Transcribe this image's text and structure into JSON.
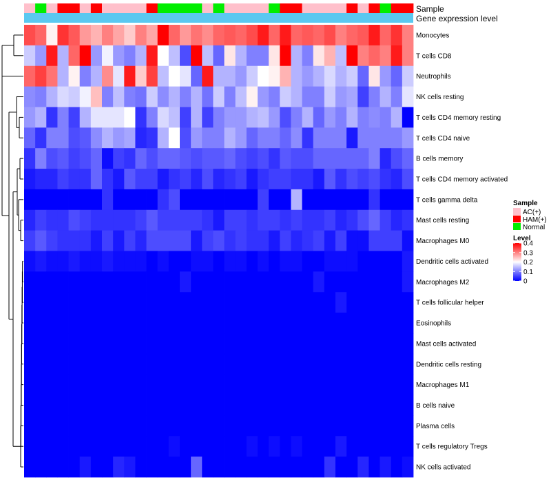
{
  "chart_data": {
    "type": "heatmap",
    "top_annotations": [
      "Sample",
      "Gene expression level"
    ],
    "sample_groups": {
      "AC(+)": "#ffc0cb",
      "HAM(+)": "#ff0000",
      "Normal": "#00ee00"
    },
    "gene_expression_color": "#5bc8f0",
    "samples": [
      "AC(+)",
      "Normal",
      "AC(+)",
      "HAM(+)",
      "HAM(+)",
      "AC(+)",
      "HAM(+)",
      "AC(+)",
      "AC(+)",
      "AC(+)",
      "AC(+)",
      "HAM(+)",
      "Normal",
      "Normal",
      "Normal",
      "Normal",
      "AC(+)",
      "Normal",
      "AC(+)",
      "AC(+)",
      "AC(+)",
      "AC(+)",
      "Normal",
      "HAM(+)",
      "HAM(+)",
      "AC(+)",
      "AC(+)",
      "AC(+)",
      "AC(+)",
      "HAM(+)",
      "AC(+)",
      "HAM(+)",
      "Normal",
      "HAM(+)",
      "HAM(+)"
    ],
    "rows": [
      "Monocytes",
      "T cells CD8",
      "Neutrophils",
      "NK cells resting",
      "T cells CD4 memory resting",
      "T cells CD4 naive",
      "B cells memory",
      "T cells CD4 memory activated",
      "T cells gamma delta",
      "Mast cells resting",
      "Macrophages M0",
      "Dendritic cells activated",
      "Macrophages M2",
      "T cells follicular helper",
      "Eosinophils",
      "Mast cells activated",
      "Dendritic cells resting",
      "Macrophages M1",
      "B cells naive",
      "Plasma cells",
      "T cells regulatory  Tregs",
      "NK cells activated"
    ],
    "values": [
      [
        0.34,
        0.32,
        0.21,
        0.36,
        0.33,
        0.28,
        0.26,
        0.3,
        0.27,
        0.24,
        0.3,
        0.27,
        0.4,
        0.32,
        0.28,
        0.31,
        0.29,
        0.32,
        0.33,
        0.32,
        0.34,
        0.38,
        0.32,
        0.38,
        0.32,
        0.33,
        0.32,
        0.34,
        0.3,
        0.32,
        0.33,
        0.38,
        0.32,
        0.36,
        0.3
      ],
      [
        0.16,
        0.12,
        0.38,
        0.14,
        0.32,
        0.4,
        0.12,
        0.19,
        0.12,
        0.1,
        0.14,
        0.38,
        0.2,
        0.15,
        0.06,
        0.4,
        0.15,
        0.08,
        0.22,
        0.14,
        0.1,
        0.1,
        0.22,
        0.4,
        0.14,
        0.1,
        0.22,
        0.26,
        0.15,
        0.4,
        0.3,
        0.32,
        0.3,
        0.38,
        0.3
      ],
      [
        0.32,
        0.35,
        0.31,
        0.14,
        0.21,
        0.1,
        0.14,
        0.29,
        0.18,
        0.38,
        0.24,
        0.35,
        0.15,
        0.2,
        0.18,
        0.08,
        0.38,
        0.14,
        0.14,
        0.12,
        0.16,
        0.2,
        0.21,
        0.26,
        0.14,
        0.12,
        0.14,
        0.17,
        0.14,
        0.16,
        0.08,
        0.22,
        0.12,
        0.08,
        0.16
      ],
      [
        0.11,
        0.1,
        0.14,
        0.17,
        0.16,
        0.19,
        0.25,
        0.1,
        0.15,
        0.1,
        0.09,
        0.16,
        0.11,
        0.14,
        0.1,
        0.14,
        0.09,
        0.16,
        0.1,
        0.15,
        0.21,
        0.12,
        0.1,
        0.16,
        0.14,
        0.1,
        0.1,
        0.16,
        0.12,
        0.13,
        0.05,
        0.1,
        0.14,
        0.1,
        0.18
      ],
      [
        0.12,
        0.14,
        0.04,
        0.1,
        0.05,
        0.14,
        0.18,
        0.18,
        0.18,
        0.2,
        0.04,
        0.1,
        0.17,
        0.15,
        0.05,
        0.14,
        0.05,
        0.1,
        0.12,
        0.12,
        0.14,
        0.15,
        0.12,
        0.06,
        0.1,
        0.14,
        0.08,
        0.12,
        0.1,
        0.14,
        0.1,
        0.11,
        0.1,
        0.14,
        0.0
      ],
      [
        0.08,
        0.04,
        0.1,
        0.1,
        0.06,
        0.07,
        0.11,
        0.14,
        0.12,
        0.13,
        0.03,
        0.04,
        0.14,
        0.2,
        0.06,
        0.12,
        0.1,
        0.1,
        0.14,
        0.12,
        0.08,
        0.1,
        0.1,
        0.08,
        0.11,
        0.04,
        0.1,
        0.1,
        0.1,
        0.02,
        0.1,
        0.1,
        0.1,
        0.1,
        0.12
      ],
      [
        0.04,
        0.1,
        0.06,
        0.07,
        0.05,
        0.06,
        0.08,
        0.01,
        0.05,
        0.04,
        0.08,
        0.06,
        0.08,
        0.08,
        0.07,
        0.06,
        0.07,
        0.07,
        0.08,
        0.06,
        0.05,
        0.06,
        0.04,
        0.07,
        0.06,
        0.06,
        0.08,
        0.08,
        0.08,
        0.08,
        0.08,
        0.1,
        0.03,
        0.06,
        0.08
      ],
      [
        0.02,
        0.03,
        0.03,
        0.05,
        0.04,
        0.04,
        0.08,
        0.04,
        0.02,
        0.07,
        0.05,
        0.05,
        0.02,
        0.04,
        0.05,
        0.03,
        0.06,
        0.03,
        0.04,
        0.05,
        0.02,
        0.04,
        0.05,
        0.05,
        0.04,
        0.04,
        0.02,
        0.07,
        0.04,
        0.06,
        0.05,
        0.06,
        0.04,
        0.03,
        0.06
      ],
      [
        0.0,
        0.0,
        0.0,
        0.0,
        0.0,
        0.0,
        0.0,
        0.04,
        0.0,
        0.0,
        0.0,
        0.0,
        0.04,
        0.06,
        0.0,
        0.0,
        0.0,
        0.0,
        0.0,
        0.0,
        0.0,
        0.05,
        0.0,
        0.0,
        0.14,
        0.0,
        0.0,
        0.0,
        0.0,
        0.0,
        0.0,
        0.04,
        0.0,
        0.0,
        0.0
      ],
      [
        0.03,
        0.05,
        0.04,
        0.04,
        0.06,
        0.05,
        0.04,
        0.04,
        0.04,
        0.04,
        0.05,
        0.07,
        0.05,
        0.05,
        0.05,
        0.05,
        0.04,
        0.02,
        0.05,
        0.05,
        0.04,
        0.05,
        0.05,
        0.04,
        0.05,
        0.04,
        0.04,
        0.05,
        0.03,
        0.04,
        0.06,
        0.08,
        0.05,
        0.03,
        0.04
      ],
      [
        0.05,
        0.07,
        0.05,
        0.04,
        0.04,
        0.04,
        0.02,
        0.05,
        0.02,
        0.05,
        0.03,
        0.06,
        0.06,
        0.06,
        0.06,
        0.02,
        0.05,
        0.06,
        0.04,
        0.05,
        0.04,
        0.04,
        0.02,
        0.05,
        0.03,
        0.04,
        0.05,
        0.02,
        0.05,
        0.01,
        0.01,
        0.05,
        0.05,
        0.05,
        0.01
      ],
      [
        0.01,
        0.02,
        0.01,
        0.01,
        0.02,
        0.01,
        0.01,
        0.02,
        0.01,
        0.01,
        0.01,
        0.0,
        0.01,
        0.0,
        0.0,
        0.01,
        0.01,
        0.0,
        0.01,
        0.01,
        0.0,
        0.01,
        0.0,
        0.01,
        0.01,
        0.0,
        0.0,
        0.01,
        0.01,
        0.01,
        0.0,
        0.0,
        0.0,
        0.0,
        0.02
      ],
      [
        0.0,
        0.0,
        0.0,
        0.0,
        0.0,
        0.0,
        0.0,
        0.0,
        0.0,
        0.0,
        0.0,
        0.0,
        0.0,
        0.0,
        0.02,
        0.0,
        0.0,
        0.0,
        0.0,
        0.0,
        0.0,
        0.0,
        0.0,
        0.0,
        0.0,
        0.0,
        0.02,
        0.0,
        0.0,
        0.0,
        0.0,
        0.0,
        0.0,
        0.0,
        0.02
      ],
      [
        0.0,
        0.0,
        0.0,
        0.0,
        0.0,
        0.0,
        0.0,
        0.0,
        0.0,
        0.0,
        0.0,
        0.0,
        0.0,
        0.0,
        0.0,
        0.0,
        0.0,
        0.0,
        0.0,
        0.0,
        0.0,
        0.0,
        0.0,
        0.0,
        0.0,
        0.0,
        0.0,
        0.0,
        0.02,
        0.0,
        0.0,
        0.0,
        0.0,
        0.0,
        0.0
      ],
      [
        0.0,
        0.0,
        0.0,
        0.0,
        0.0,
        0.0,
        0.0,
        0.0,
        0.0,
        0.0,
        0.0,
        0.0,
        0.0,
        0.0,
        0.0,
        0.0,
        0.0,
        0.0,
        0.0,
        0.0,
        0.0,
        0.0,
        0.0,
        0.0,
        0.0,
        0.0,
        0.0,
        0.0,
        0.0,
        0.0,
        0.0,
        0.0,
        0.0,
        0.0,
        0.0
      ],
      [
        0.0,
        0.0,
        0.0,
        0.0,
        0.0,
        0.0,
        0.0,
        0.0,
        0.0,
        0.0,
        0.0,
        0.0,
        0.0,
        0.0,
        0.0,
        0.0,
        0.0,
        0.0,
        0.0,
        0.0,
        0.0,
        0.0,
        0.0,
        0.0,
        0.0,
        0.0,
        0.0,
        0.0,
        0.0,
        0.0,
        0.0,
        0.0,
        0.0,
        0.0,
        0.0
      ],
      [
        0.0,
        0.0,
        0.0,
        0.0,
        0.0,
        0.0,
        0.0,
        0.0,
        0.0,
        0.0,
        0.0,
        0.0,
        0.0,
        0.0,
        0.0,
        0.0,
        0.0,
        0.0,
        0.0,
        0.0,
        0.0,
        0.0,
        0.0,
        0.0,
        0.0,
        0.0,
        0.0,
        0.0,
        0.0,
        0.0,
        0.0,
        0.0,
        0.0,
        0.0,
        0.0
      ],
      [
        0.0,
        0.0,
        0.0,
        0.0,
        0.0,
        0.0,
        0.0,
        0.0,
        0.0,
        0.0,
        0.0,
        0.0,
        0.0,
        0.0,
        0.0,
        0.0,
        0.0,
        0.0,
        0.0,
        0.0,
        0.0,
        0.0,
        0.0,
        0.0,
        0.0,
        0.0,
        0.0,
        0.0,
        0.0,
        0.0,
        0.0,
        0.0,
        0.0,
        0.0,
        0.0
      ],
      [
        0.0,
        0.0,
        0.0,
        0.0,
        0.0,
        0.0,
        0.0,
        0.0,
        0.0,
        0.0,
        0.0,
        0.0,
        0.0,
        0.0,
        0.0,
        0.0,
        0.0,
        0.0,
        0.0,
        0.0,
        0.0,
        0.0,
        0.0,
        0.0,
        0.0,
        0.0,
        0.0,
        0.0,
        0.0,
        0.0,
        0.0,
        0.0,
        0.0,
        0.0,
        0.0
      ],
      [
        0.0,
        0.0,
        0.0,
        0.0,
        0.0,
        0.0,
        0.0,
        0.0,
        0.0,
        0.0,
        0.0,
        0.0,
        0.0,
        0.0,
        0.0,
        0.0,
        0.0,
        0.0,
        0.0,
        0.0,
        0.0,
        0.0,
        0.0,
        0.0,
        0.0,
        0.0,
        0.0,
        0.0,
        0.0,
        0.0,
        0.0,
        0.0,
        0.0,
        0.0,
        0.0
      ],
      [
        0.0,
        0.0,
        0.0,
        0.0,
        0.0,
        0.0,
        0.0,
        0.0,
        0.0,
        0.0,
        0.0,
        0.0,
        0.0,
        0.01,
        0.0,
        0.0,
        0.0,
        0.0,
        0.0,
        0.0,
        0.01,
        0.0,
        0.01,
        0.0,
        0.01,
        0.0,
        0.0,
        0.0,
        0.02,
        0.0,
        0.0,
        0.0,
        0.0,
        0.0,
        0.0
      ],
      [
        0.0,
        0.0,
        0.0,
        0.0,
        0.0,
        0.02,
        0.0,
        0.0,
        0.03,
        0.02,
        0.0,
        0.0,
        0.0,
        0.0,
        0.0,
        0.08,
        0.0,
        0.0,
        0.0,
        0.0,
        0.0,
        0.0,
        0.0,
        0.0,
        0.0,
        0.0,
        0.0,
        0.04,
        0.0,
        0.0,
        0.03,
        0.0,
        0.02,
        0.0,
        0.01
      ]
    ],
    "color_scale": {
      "low": "#0000ff",
      "mid": "#ffffff",
      "high": "#ff0000",
      "domain": [
        0,
        0.2,
        0.4
      ]
    },
    "legend": {
      "sample_title": "Sample",
      "sample_entries": [
        "AC(+)",
        "HAM(+)",
        "Normal"
      ],
      "level_title": "Level",
      "level_ticks": [
        "0.4",
        "0.3",
        "0.2",
        "0.1",
        "0"
      ],
      "level_tick_values": [
        0.4,
        0.3,
        0.2,
        0.1,
        0
      ]
    }
  }
}
